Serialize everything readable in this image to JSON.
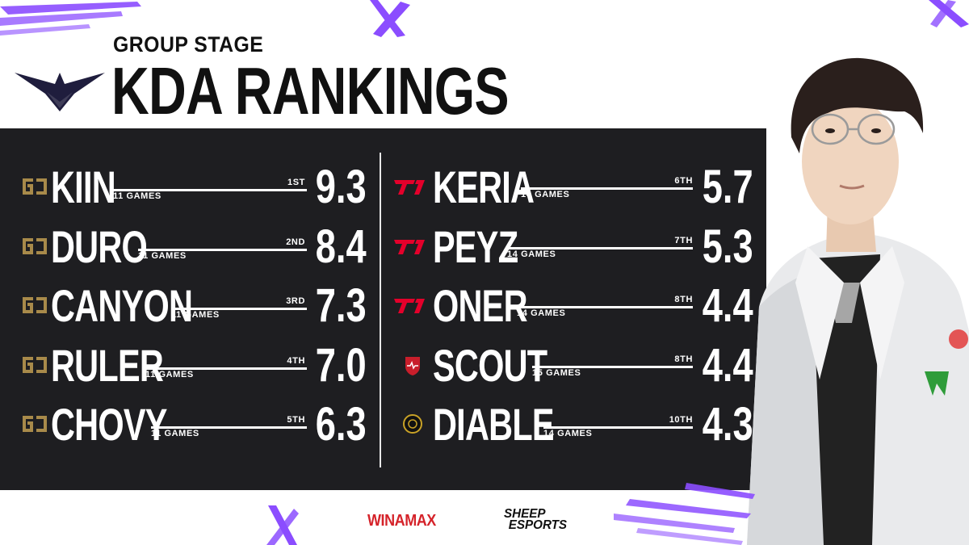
{
  "header": {
    "subtitle": "GROUP STAGE",
    "title": "KDA RANKINGS"
  },
  "left_column": [
    {
      "name": "KIIN",
      "games": "11 GAMES",
      "rank": "1ST",
      "kda": "9.3",
      "team_icon": "gen-g-logo-icon"
    },
    {
      "name": "DURO",
      "games": "11 GAMES",
      "rank": "2ND",
      "kda": "8.4",
      "team_icon": "gen-g-logo-icon"
    },
    {
      "name": "CANYON",
      "games": "11 GAMES",
      "rank": "3RD",
      "kda": "7.3",
      "team_icon": "gen-g-logo-icon"
    },
    {
      "name": "RULER",
      "games": "11 GAMES",
      "rank": "4TH",
      "kda": "7.0",
      "team_icon": "gen-g-logo-icon"
    },
    {
      "name": "CHOVY",
      "games": "11 GAMES",
      "rank": "5TH",
      "kda": "6.3",
      "team_icon": "gen-g-logo-icon"
    }
  ],
  "right_column": [
    {
      "name": "KERIA",
      "games": "14 GAMES",
      "rank": "6TH",
      "kda": "5.7",
      "team_icon": "t1-logo-icon"
    },
    {
      "name": "PEYZ",
      "games": "14 GAMES",
      "rank": "7TH",
      "kda": "5.3",
      "team_icon": "t1-logo-icon"
    },
    {
      "name": "ONER",
      "games": "14 GAMES",
      "rank": "8TH",
      "kda": "4.4",
      "team_icon": "t1-logo-icon"
    },
    {
      "name": "SCOUT",
      "games": "15 GAMES",
      "rank": "8TH",
      "kda": "4.4",
      "team_icon": "shield-team-logo-icon"
    },
    {
      "name": "DIABLE",
      "games": "14 GAMES",
      "rank": "10TH",
      "kda": "4.3",
      "team_icon": "round-team-logo-icon"
    }
  ],
  "sponsors": {
    "winamax": "WINAMAX",
    "sheep_line1": "SHEEP",
    "sheep_line2": "ESPORTS"
  },
  "colors": {
    "panel": "#1e1e21",
    "accent_purple": "#8b4dff",
    "gen_g_gold": "#a88a4a",
    "t1_red": "#e4002b",
    "winamax_red": "#d5232a"
  }
}
